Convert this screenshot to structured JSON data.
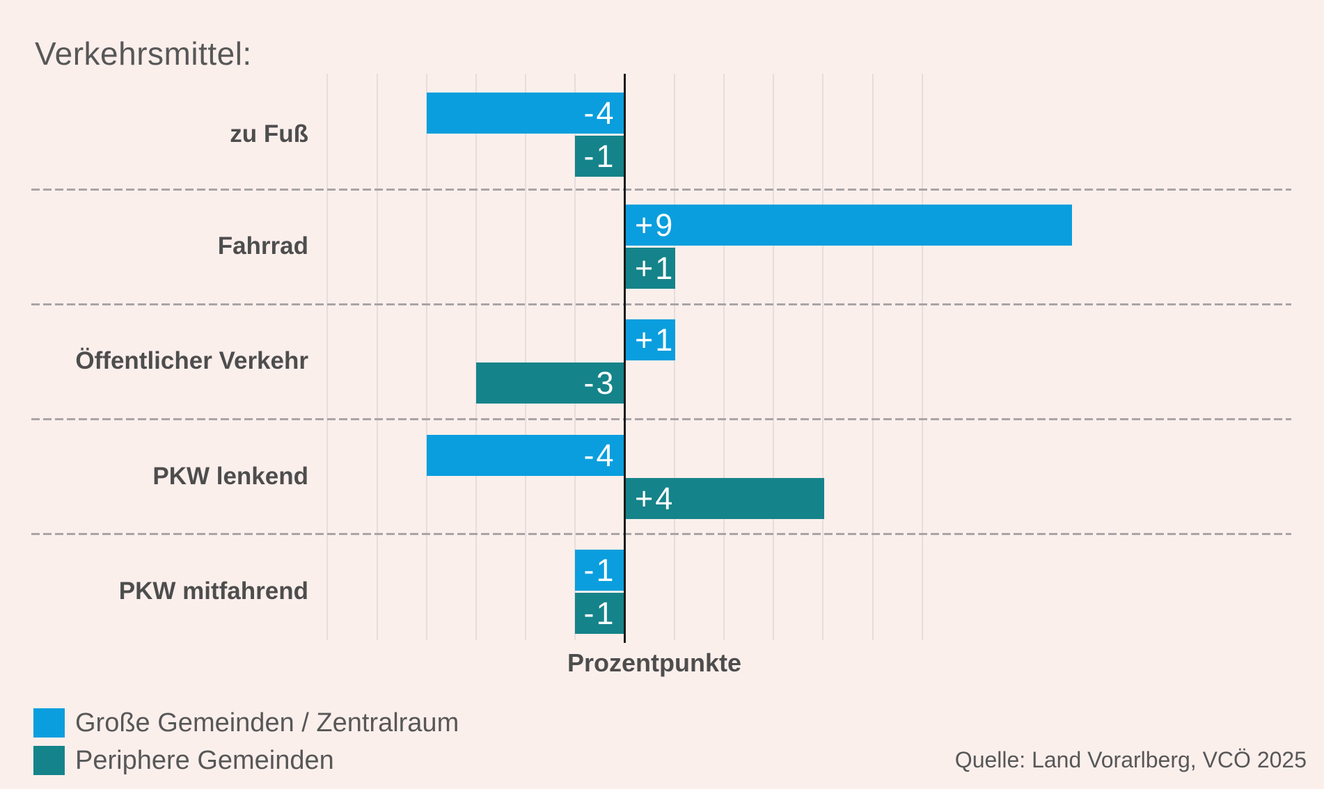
{
  "title": "Verkehrsmittel:",
  "axis": {
    "label": "Prozentpunkte"
  },
  "chart_data": {
    "type": "bar",
    "orientation": "horizontal",
    "title": "Verkehrsmittel:",
    "xlabel": "Prozentpunkte",
    "xlim": [
      -6,
      6
    ],
    "grid": "vertical gridlines every 1 percentage point, solid black line at 0, dashed horizontal separators between categories",
    "legend_position": "bottom-left",
    "categories": [
      "zu Fuß",
      "Fahrrad",
      "Öffentlicher Verkehr",
      "PKW lenkend",
      "PKW mitfahrend"
    ],
    "series": [
      {
        "name": "Große Gemeinden / Zentralraum",
        "color": "#0a9ede",
        "values": [
          -4,
          9,
          1,
          -4,
          -1
        ],
        "labels": [
          "-4",
          "+9",
          "+1",
          "-4",
          "-1"
        ]
      },
      {
        "name": "Periphere Gemeinden",
        "color": "#15838a",
        "values": [
          -1,
          1,
          -3,
          4,
          -1
        ],
        "labels": [
          "-1",
          "+1",
          "-3",
          "+4",
          "-1"
        ]
      }
    ]
  },
  "legend": {
    "items": [
      {
        "label": "Große Gemeinden / Zentralraum",
        "color": "#0a9ede"
      },
      {
        "label": "Periphere Gemeinden",
        "color": "#15838a"
      }
    ]
  },
  "source": "Quelle: Land Vorarlberg, VCÖ 2025",
  "colors": {
    "background": "#fbefec",
    "gridline": "#e6dddd",
    "zero_line": "#191919",
    "separator": "#a9a4a7",
    "text_dark": "#4d4d4d",
    "text_medium": "#575757",
    "bar_label": "#ffffff"
  }
}
